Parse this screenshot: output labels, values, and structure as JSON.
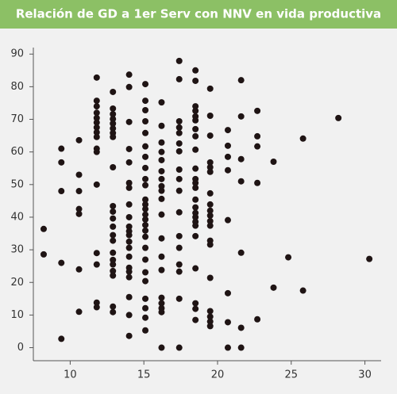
{
  "chart_data": {
    "type": "scatter",
    "title": "Relación de GD a 1er Serv con NNV en vida productiva",
    "color": "#1f1414",
    "x": [
      8.2,
      8.2,
      9.4,
      9.4,
      9.4,
      9.4,
      9.4,
      10.6,
      10.6,
      10.6,
      10.6,
      10.6,
      10.6,
      10.6,
      11.8,
      11.8,
      11.8,
      11.8,
      11.8,
      11.8,
      11.8,
      11.8,
      11.8,
      11.8,
      11.8,
      11.8,
      11.8,
      11.8,
      11.8,
      11.8,
      12.9,
      12.9,
      12.9,
      12.9,
      12.9,
      12.9,
      12.9,
      12.9,
      12.9,
      12.9,
      12.9,
      12.9,
      12.9,
      12.9,
      12.9,
      12.9,
      12.9,
      12.9,
      12.9,
      12.9,
      12.9,
      12.9,
      14.0,
      14.0,
      14.0,
      14.0,
      14.0,
      14.0,
      14.0,
      14.0,
      14.0,
      14.0,
      14.0,
      14.0,
      14.0,
      14.0,
      14.0,
      14.0,
      14.0,
      14.0,
      14.0,
      14.0,
      14.0,
      15.1,
      15.1,
      15.1,
      15.1,
      15.1,
      15.1,
      15.1,
      15.1,
      15.1,
      15.1,
      15.1,
      15.1,
      15.1,
      15.1,
      15.1,
      15.1,
      15.1,
      15.1,
      15.1,
      15.1,
      15.1,
      15.1,
      15.1,
      15.1,
      15.1,
      15.1,
      16.2,
      16.2,
      16.2,
      16.2,
      16.2,
      16.2,
      16.2,
      16.2,
      16.2,
      16.2,
      16.2,
      16.2,
      16.2,
      16.2,
      16.2,
      16.2,
      16.2,
      16.2,
      16.2,
      17.4,
      17.4,
      17.4,
      17.4,
      17.4,
      17.4,
      17.4,
      17.4,
      17.4,
      17.4,
      17.4,
      17.4,
      17.4,
      17.4,
      17.4,
      17.4,
      17.4,
      18.5,
      18.5,
      18.5,
      18.5,
      18.5,
      18.5,
      18.5,
      18.5,
      18.5,
      18.5,
      18.5,
      18.5,
      18.5,
      18.5,
      18.5,
      18.5,
      18.5,
      18.5,
      18.5,
      18.5,
      18.5,
      18.5,
      18.5,
      18.5,
      19.5,
      19.5,
      19.5,
      19.5,
      19.5,
      19.5,
      19.5,
      19.5,
      19.5,
      19.5,
      19.5,
      19.5,
      19.5,
      19.5,
      19.5,
      19.5,
      19.5,
      19.5,
      19.5,
      20.7,
      20.7,
      20.7,
      20.7,
      20.7,
      20.7,
      20.7,
      20.7,
      21.6,
      21.6,
      21.6,
      21.6,
      21.6,
      21.6,
      21.6,
      22.7,
      22.7,
      22.7,
      22.7,
      22.7,
      23.8,
      23.8,
      24.8,
      25.8,
      25.8,
      28.2,
      30.3
    ],
    "values": [
      36.4,
      28.6,
      61,
      56.8,
      48,
      26,
      2.7,
      63.6,
      53,
      48,
      42.5,
      41,
      24,
      11,
      82.8,
      75.7,
      74,
      72,
      70.4,
      69,
      67.5,
      66,
      64.6,
      61,
      60,
      50,
      29,
      25.5,
      13.8,
      12.4,
      78.4,
      73.3,
      71.6,
      70.1,
      68.7,
      67.2,
      65.8,
      64.6,
      55.3,
      43.4,
      41.7,
      39.6,
      37.1,
      34.5,
      32.8,
      29.1,
      26.9,
      25.5,
      23.5,
      22.1,
      12.6,
      10.9,
      83.7,
      79.9,
      69.2,
      60.9,
      56.8,
      50.5,
      49,
      43.9,
      40,
      37.1,
      35.7,
      34.5,
      32.5,
      30.6,
      27.9,
      24.5,
      23.3,
      21.6,
      15.5,
      10,
      3.6,
      80.8,
      75.7,
      72.8,
      69.4,
      65.8,
      61.7,
      58.5,
      55.1,
      51.7,
      49.8,
      45.4,
      43.9,
      42.5,
      40.8,
      39.3,
      37.6,
      35.9,
      34,
      30.6,
      27,
      23.1,
      20.4,
      15,
      12.1,
      9.2,
      5.3,
      75.2,
      68,
      62.9,
      60,
      57.5,
      54.1,
      51.7,
      49.5,
      48.1,
      45.6,
      40.8,
      33.5,
      27.9,
      23.8,
      15.3,
      13.6,
      12.1,
      10.9,
      0,
      87.9,
      82.3,
      69.4,
      67.5,
      65.8,
      62.6,
      60.2,
      54.6,
      51.7,
      48.1,
      41.5,
      34.2,
      30.6,
      25.5,
      23.3,
      15,
      0,
      85,
      81.8,
      74,
      72.6,
      70.9,
      69.7,
      67,
      64.8,
      60.7,
      54.9,
      51.7,
      50.5,
      49,
      45.4,
      43,
      41.3,
      40,
      38.6,
      37.4,
      34.2,
      24.3,
      13.6,
      11.9,
      8.5,
      79.4,
      71.1,
      65,
      56.8,
      55.3,
      53.9,
      47.3,
      43.9,
      42,
      40.5,
      38.8,
      37.4,
      32.8,
      31.6,
      21.4,
      11.2,
      9.5,
      8,
      6.6,
      66.7,
      61.9,
      58.5,
      54.4,
      39.1,
      16.7,
      7.8,
      0,
      82,
      70.9,
      57.8,
      51,
      29.1,
      6.1,
      0,
      72.6,
      64.8,
      61.7,
      50.5,
      8.7,
      57,
      18.4,
      27.7,
      64.1,
      17.5,
      70.4,
      27.2
    ],
    "xlim": [
      7.5,
      31.1
    ],
    "xticks": [
      10,
      15,
      20,
      25,
      30
    ],
    "ylim": [
      -4,
      92
    ],
    "yticks": [
      0,
      10,
      20,
      30,
      40,
      50,
      60,
      70,
      80,
      90
    ]
  }
}
